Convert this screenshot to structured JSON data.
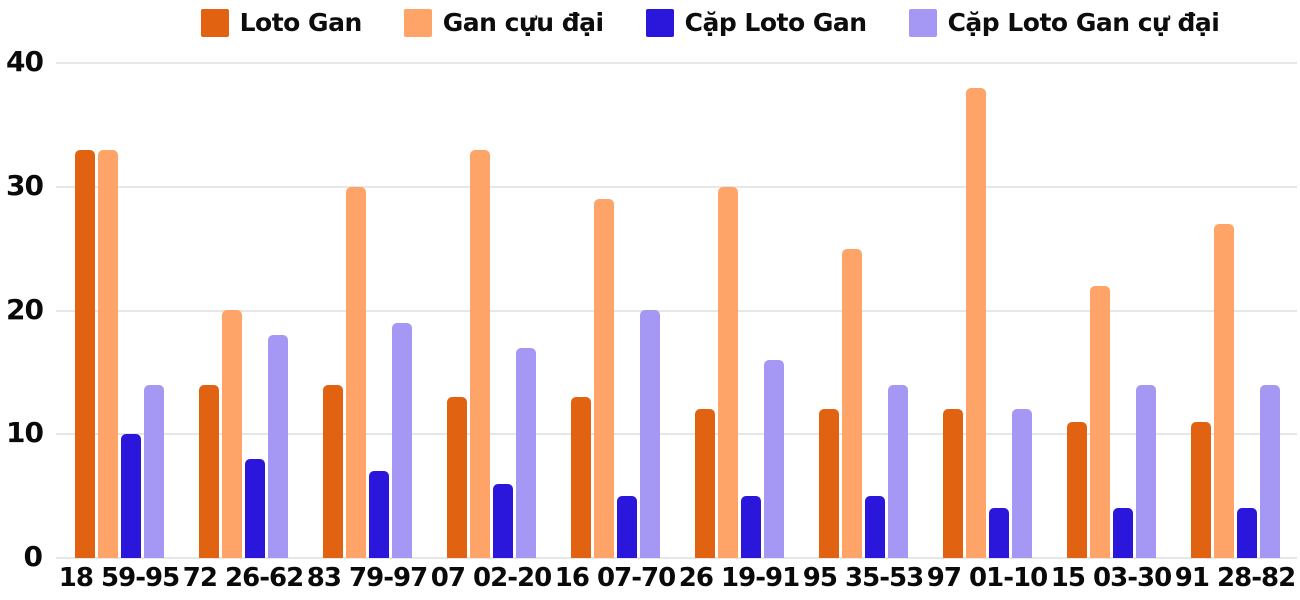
{
  "chart_data": {
    "type": "bar",
    "title": "",
    "xlabel": "",
    "ylabel": "",
    "categories": [
      "18 59-95",
      "72 26-62",
      "83 79-97",
      "07 02-20",
      "16 07-70",
      "26 19-91",
      "95 35-53",
      "97 01-10",
      "15 03-30",
      "91 28-82"
    ],
    "series": [
      {
        "name": "Loto Gan",
        "color": "#e16311",
        "values": [
          33,
          14,
          14,
          13,
          13,
          12,
          12,
          12,
          11,
          11
        ]
      },
      {
        "name": "Gan cựu đại",
        "color": "#ffa469",
        "values": [
          33,
          20,
          30,
          33,
          29,
          30,
          25,
          38,
          22,
          27
        ]
      },
      {
        "name": "Cặp Loto Gan",
        "color": "#2b16dc",
        "values": [
          10,
          8,
          7,
          6,
          5,
          5,
          5,
          4,
          4,
          4
        ]
      },
      {
        "name": "Cặp Loto Gan cự đại",
        "color": "#a598f5",
        "values": [
          14,
          18,
          19,
          17,
          20,
          16,
          14,
          12,
          14,
          14
        ]
      }
    ],
    "ylim": [
      0,
      40
    ],
    "yticks": [
      0,
      10,
      20,
      30,
      40
    ],
    "grid": true,
    "legend_position": "top",
    "colors": {
      "gridline": "#e7e7e7",
      "text": "#0a0a0a",
      "background": "#ffffff"
    }
  }
}
